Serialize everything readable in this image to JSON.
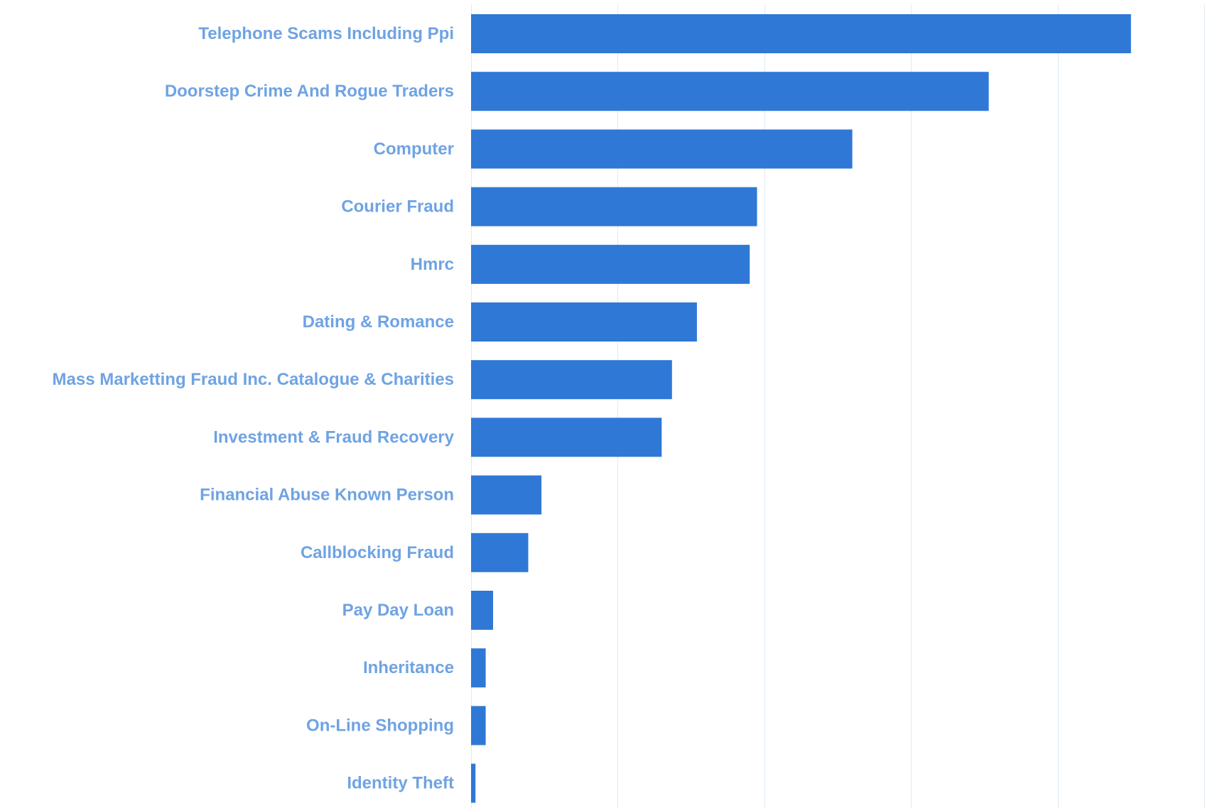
{
  "chart_data": {
    "type": "bar",
    "orientation": "horizontal",
    "title": "",
    "xlabel": "",
    "ylabel": "",
    "xlim": [
      0,
      50
    ],
    "grid": true,
    "legend": "none",
    "categories": [
      "Telephone Scams Including Ppi",
      "Doorstep Crime And Rogue Traders",
      "Computer",
      "Courier Fraud",
      "Hmrc",
      "Dating & Romance",
      "Mass Marketting Fraud Inc. Catalogue & Charities",
      "Investment & Fraud Recovery",
      "Financial Abuse Known Person",
      "Callblocking Fraud",
      "Pay Day Loan",
      "Inheritance",
      "On-Line Shopping",
      "Identity Theft"
    ],
    "values": [
      45,
      35.3,
      26,
      19.5,
      19,
      15.4,
      13.7,
      13,
      4.8,
      3.9,
      1.5,
      1,
      1,
      0.3
    ]
  },
  "colors": {
    "bar": "#2f78d6",
    "label": "#6fa3e3",
    "grid": "#dde9f6",
    "background": "#ffffff"
  }
}
